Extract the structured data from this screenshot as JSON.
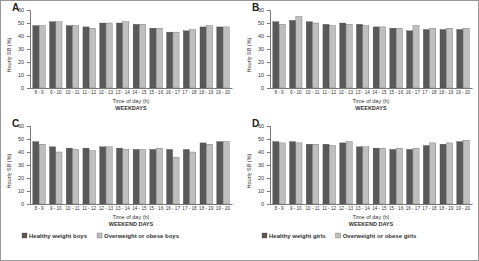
{
  "chart_data": [
    {
      "type": "bar",
      "title": "A",
      "y_label": "Hourly SB (%)",
      "x_label": "Time of day (h)",
      "subtitle": "WEEKDAYS",
      "categories": [
        "8 - 9",
        "9 - 10",
        "10 - 11",
        "11 - 12",
        "12 - 13",
        "13 - 14",
        "14 - 15",
        "15 - 16",
        "16 - 17",
        "17 - 18",
        "18 - 19",
        "19 - 20"
      ],
      "series": [
        {
          "color": "#595959",
          "values": [
            48,
            51,
            48,
            47,
            50,
            50,
            49,
            46,
            43,
            44,
            47,
            47
          ]
        },
        {
          "color": "#bfbfbf",
          "values": [
            48,
            51,
            48,
            46,
            50,
            51,
            49,
            46,
            43,
            45,
            48,
            47
          ]
        }
      ],
      "ylim": [
        0,
        60
      ],
      "yticks": [
        0,
        10,
        20,
        30,
        40,
        50,
        60
      ]
    },
    {
      "type": "bar",
      "title": "B",
      "y_label": "Hourly SB (%)",
      "x_label": "Time of day (h)",
      "subtitle": "WEEKDAYS",
      "categories": [
        "8 - 9",
        "9 - 10",
        "10 - 11",
        "11 - 12",
        "12 - 13",
        "13 - 14",
        "14 - 15",
        "15 - 16",
        "16 - 17",
        "17 - 18",
        "18 - 19",
        "19 - 20"
      ],
      "series": [
        {
          "color": "#595959",
          "values": [
            51,
            52,
            51,
            49,
            50,
            49,
            47,
            46,
            44,
            45,
            45,
            45
          ]
        },
        {
          "color": "#bfbfbf",
          "values": [
            49,
            55,
            50,
            48,
            49,
            48,
            47,
            46,
            48,
            46,
            46,
            46
          ]
        }
      ],
      "ylim": [
        0,
        60
      ],
      "yticks": [
        0,
        10,
        20,
        30,
        40,
        50,
        60
      ]
    },
    {
      "type": "bar",
      "title": "C",
      "y_label": "Hourly SB (%)",
      "x_label": "Time of day (h)",
      "subtitle": "WEEKEND DAYS",
      "categories": [
        "8 - 9",
        "9 - 10",
        "10 - 11",
        "11 - 12",
        "12 - 13",
        "13 - 14",
        "14 - 15",
        "15 - 16",
        "16 - 17",
        "17 - 18",
        "18 - 19",
        "19 - 20"
      ],
      "series": [
        {
          "name": "Healthy weight boys",
          "color": "#595959",
          "values": [
            48,
            44,
            43,
            43,
            44,
            43,
            42,
            42,
            42,
            42,
            47,
            48
          ]
        },
        {
          "name": "Overweight or obese boys",
          "color": "#bfbfbf",
          "values": [
            46,
            40,
            42,
            41,
            44,
            42,
            42,
            43,
            36,
            40,
            46,
            48
          ]
        }
      ],
      "ylim": [
        0,
        60
      ],
      "yticks": [
        0,
        10,
        20,
        30,
        40,
        50,
        60
      ],
      "legend": "bottom"
    },
    {
      "type": "bar",
      "title": "D",
      "y_label": "Hourly SB (%)",
      "x_label": "Time of day (h)",
      "subtitle": "WEEKEND DAYS",
      "categories": [
        "8 - 9",
        "9 - 10",
        "10 - 11",
        "11 - 12",
        "12 - 13",
        "13 - 14",
        "14 - 15",
        "15 - 16",
        "16 - 17",
        "17 - 18",
        "18 - 19",
        "19 - 20"
      ],
      "series": [
        {
          "name": "Healthy weight girls",
          "color": "#595959",
          "values": [
            48,
            48,
            46,
            46,
            47,
            44,
            43,
            42,
            42,
            45,
            46,
            48
          ]
        },
        {
          "name": "Overweight or obese girls",
          "color": "#bfbfbf",
          "values": [
            47,
            47,
            46,
            45,
            48,
            44,
            43,
            43,
            43,
            47,
            47,
            49
          ]
        }
      ],
      "ylim": [
        0,
        60
      ],
      "yticks": [
        0,
        10,
        20,
        30,
        40,
        50,
        60
      ],
      "legend": "bottom"
    }
  ]
}
